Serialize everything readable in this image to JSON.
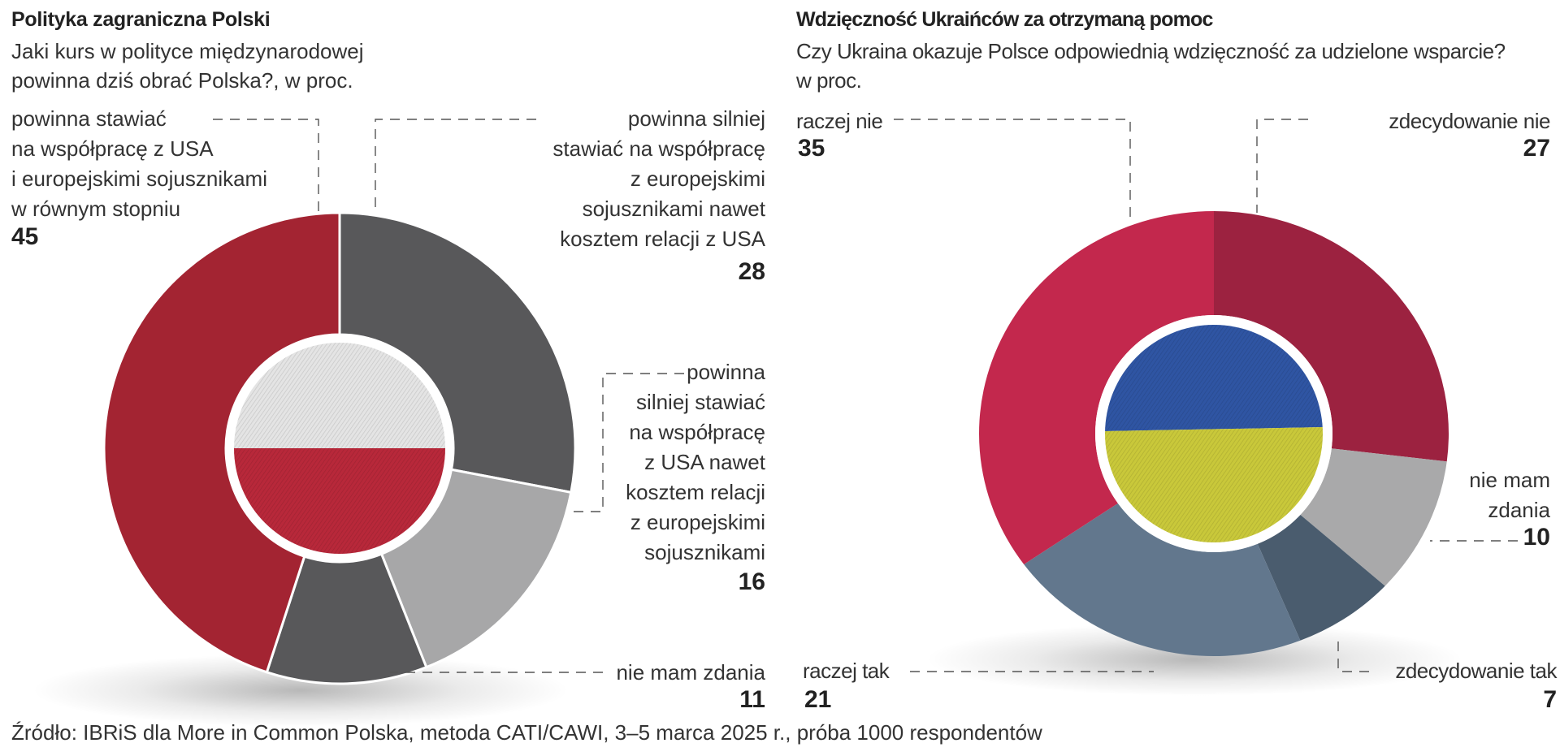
{
  "chart_data": [
    {
      "type": "pie",
      "donut": true,
      "title": "Polityka zagraniczna Polski",
      "subtitle_lines": [
        "Jaki kurs w polityce międzynarodowej",
        "powinna dziś obrać Polska?, w proc."
      ],
      "unit": "%",
      "center_image": "flag-poland",
      "slices": [
        {
          "label_lines": [
            "powinna silniej",
            "stawiać na współpracę",
            "z europejskimi",
            "sojusznikami nawet",
            "kosztem relacji z USA"
          ],
          "value": 28,
          "color": "#58585a"
        },
        {
          "label_lines": [
            "powinna",
            "silniej stawiać",
            "na współpracę",
            "z USA nawet",
            "kosztem relacji",
            "z europejskimi",
            "sojusznikami"
          ],
          "value": 16,
          "color": "#a7a7a8"
        },
        {
          "label_lines": [
            "nie mam zdania"
          ],
          "value": 11,
          "color": "#58585a"
        },
        {
          "label_lines": [
            "powinna stawiać",
            "na współpracę z USA",
            "i europejskimi sojusznikami",
            "w równym stopniu"
          ],
          "value": 45,
          "color": "#a32432"
        }
      ]
    },
    {
      "type": "pie",
      "donut": true,
      "title": "Wdzięczność Ukraińców za otrzymaną pomoc",
      "subtitle_lines": [
        "Czy Ukraina okazuje Polsce odpowiednią wdzięczność za udzielone wsparcie?",
        "w proc."
      ],
      "unit": "%",
      "center_image": "flag-ukraine",
      "slices": [
        {
          "label_lines": [
            "zdecydowanie nie"
          ],
          "value": 27,
          "color": "#9c2240"
        },
        {
          "label_lines": [
            "nie mam",
            "zdania"
          ],
          "value": 10,
          "color": "#a9a9aa"
        },
        {
          "label_lines": [
            "zdecydowanie tak"
          ],
          "value": 7,
          "color": "#4a5c6e"
        },
        {
          "label_lines": [
            "raczej tak"
          ],
          "value": 21,
          "color": "#62778d"
        },
        {
          "label_lines": [
            "raczej nie"
          ],
          "value": 35,
          "color": "#c3284d"
        }
      ]
    }
  ],
  "source": "Źródło: IBRiS dla More in Common Polska, metoda CATI/CAWI, 3–5 marca 2025 r., próba 1000 respondentów",
  "colors": {
    "poland_white": "#e4e4e4",
    "poland_red": "#b8283a",
    "ukraine_blue": "#2f55a3",
    "ukraine_yellow": "#c9c83a",
    "leader_line": "#555555"
  }
}
